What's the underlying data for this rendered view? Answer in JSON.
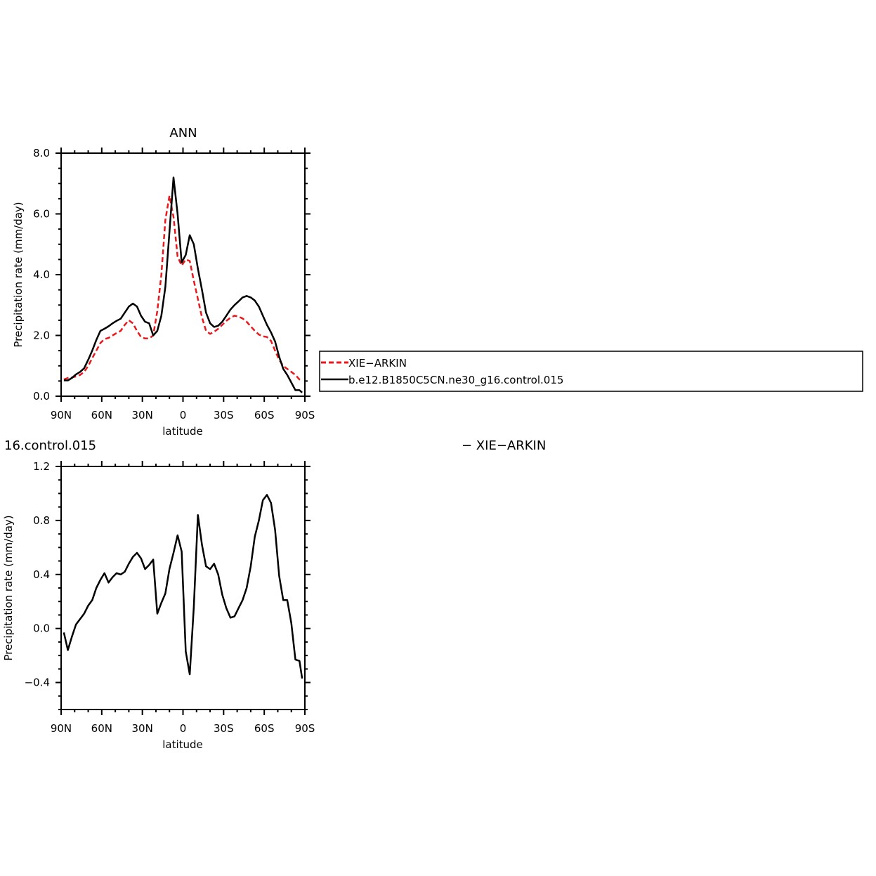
{
  "chart_data": [
    {
      "type": "line",
      "title": "ANN",
      "xlabel": "latitude",
      "ylabel": "Precipitation rate (mm/day)",
      "x_ticks": [
        "90N",
        "60N",
        "30N",
        "0",
        "30S",
        "60S",
        "90S"
      ],
      "y_ticks": [
        "0.0",
        "2.0",
        "4.0",
        "6.0",
        "8.0"
      ],
      "xlim": [
        -90,
        90
      ],
      "ylim": [
        0,
        8
      ],
      "legend": "right",
      "series": [
        {
          "name": "XIE−ARKIN",
          "color": "#e8191c",
          "dash": true,
          "x": [
            -88,
            -85,
            -82,
            -79,
            -76,
            -73,
            -70,
            -67,
            -64,
            -61,
            -58,
            -55,
            -52,
            -49,
            -46,
            -43,
            -40,
            -37,
            -34,
            -31,
            -28,
            -25,
            -22,
            -19,
            -16,
            -13,
            -10,
            -7,
            -4,
            -1,
            2,
            5,
            8,
            11,
            14,
            17,
            20,
            23,
            26,
            29,
            32,
            35,
            38,
            41,
            44,
            47,
            50,
            53,
            56,
            59,
            62,
            65,
            68,
            71,
            74,
            77,
            80,
            83,
            86,
            88
          ],
          "y": [
            0.55,
            0.6,
            0.62,
            0.65,
            0.7,
            0.8,
            1.0,
            1.25,
            1.5,
            1.75,
            1.88,
            1.92,
            2.0,
            2.08,
            2.15,
            2.35,
            2.5,
            2.4,
            2.15,
            1.95,
            1.9,
            1.9,
            2.0,
            2.8,
            4.0,
            5.8,
            6.6,
            5.9,
            4.6,
            4.3,
            4.5,
            4.45,
            3.8,
            3.2,
            2.6,
            2.15,
            2.05,
            2.12,
            2.22,
            2.35,
            2.48,
            2.58,
            2.65,
            2.62,
            2.56,
            2.45,
            2.3,
            2.15,
            2.03,
            1.97,
            1.95,
            1.82,
            1.5,
            1.2,
            1.0,
            0.9,
            0.8,
            0.7,
            0.55,
            0.5
          ]
        },
        {
          "name": "b.e12.B1850C5CN.ne30_g16.control.015",
          "color": "#000000",
          "dash": false,
          "x": [
            -88,
            -85,
            -82,
            -79,
            -76,
            -73,
            -70,
            -67,
            -64,
            -61,
            -58,
            -55,
            -52,
            -49,
            -46,
            -43,
            -40,
            -37,
            -34,
            -31,
            -28,
            -25,
            -22,
            -19,
            -16,
            -13,
            -10,
            -7,
            -4,
            -1,
            2,
            5,
            8,
            11,
            14,
            17,
            20,
            23,
            26,
            29,
            32,
            35,
            38,
            41,
            44,
            47,
            50,
            53,
            56,
            59,
            62,
            65,
            68,
            71,
            74,
            77,
            80,
            83,
            86,
            88
          ],
          "y": [
            0.52,
            0.52,
            0.6,
            0.72,
            0.8,
            0.92,
            1.2,
            1.5,
            1.85,
            2.15,
            2.22,
            2.3,
            2.4,
            2.48,
            2.55,
            2.75,
            2.95,
            3.05,
            2.95,
            2.65,
            2.45,
            2.4,
            2.0,
            2.15,
            2.65,
            3.6,
            5.4,
            7.2,
            6.0,
            4.4,
            4.65,
            5.3,
            5.0,
            4.2,
            3.5,
            2.75,
            2.4,
            2.28,
            2.32,
            2.45,
            2.65,
            2.85,
            3.0,
            3.12,
            3.25,
            3.3,
            3.25,
            3.15,
            2.95,
            2.65,
            2.35,
            2.1,
            1.8,
            1.3,
            0.9,
            0.7,
            0.45,
            0.2,
            0.2,
            0.12
          ]
        }
      ]
    },
    {
      "type": "line",
      "title": "",
      "title_left": "16.control.015",
      "title_right": "− XIE−ARKIN",
      "xlabel": "latitude",
      "ylabel": "Precipitation rate (mm/day)",
      "x_ticks": [
        "90N",
        "60N",
        "30N",
        "0",
        "30S",
        "60S",
        "90S"
      ],
      "y_ticks": [
        "−0.4",
        "0.0",
        "0.4",
        "0.8",
        "1.2"
      ],
      "xlim": [
        -90,
        90
      ],
      "ylim": [
        -0.6,
        1.2
      ],
      "series": [
        {
          "color": "#000000",
          "dash": false,
          "x": [
            -88,
            -85,
            -82,
            -79,
            -76,
            -73,
            -70,
            -67,
            -64,
            -61,
            -58,
            -55,
            -52,
            -49,
            -46,
            -43,
            -40,
            -37,
            -34,
            -31,
            -28,
            -25,
            -22,
            -19,
            -16,
            -13,
            -10,
            -7,
            -4,
            -1,
            2,
            5,
            8,
            11,
            14,
            17,
            20,
            23,
            26,
            29,
            32,
            35,
            38,
            41,
            44,
            47,
            50,
            53,
            56,
            59,
            62,
            65,
            68,
            71,
            74,
            77,
            80,
            83,
            86,
            88
          ],
          "y": [
            -0.03,
            -0.16,
            -0.06,
            0.03,
            0.07,
            0.11,
            0.17,
            0.21,
            0.3,
            0.36,
            0.41,
            0.34,
            0.38,
            0.41,
            0.4,
            0.42,
            0.48,
            0.53,
            0.56,
            0.52,
            0.44,
            0.47,
            0.51,
            0.11,
            0.19,
            0.26,
            0.44,
            0.56,
            0.69,
            0.57,
            -0.17,
            -0.34,
            0.16,
            0.84,
            0.62,
            0.46,
            0.44,
            0.48,
            0.4,
            0.25,
            0.15,
            0.08,
            0.09,
            0.15,
            0.21,
            0.3,
            0.46,
            0.68,
            0.8,
            0.95,
            0.99,
            0.93,
            0.73,
            0.39,
            0.21,
            0.21,
            0.04,
            -0.23,
            -0.24,
            -0.37
          ]
        }
      ]
    }
  ],
  "legend": {
    "items": [
      "XIE−ARKIN",
      "b.e12.B1850C5CN.ne30_g16.control.015"
    ]
  }
}
